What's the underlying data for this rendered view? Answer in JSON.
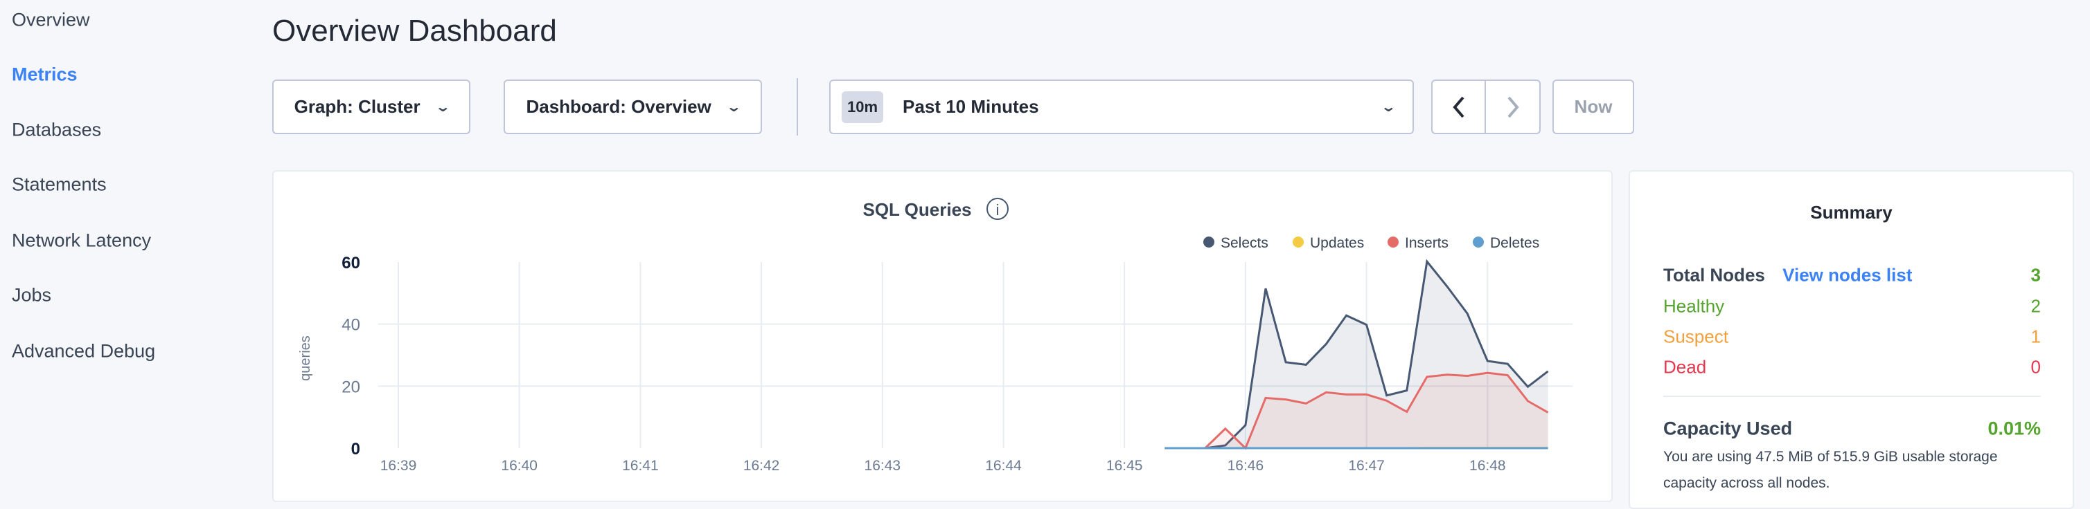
{
  "sidebar": {
    "items": [
      {
        "label": "Overview",
        "active": false
      },
      {
        "label": "Metrics",
        "active": true
      },
      {
        "label": "Databases",
        "active": false
      },
      {
        "label": "Statements",
        "active": false
      },
      {
        "label": "Network Latency",
        "active": false
      },
      {
        "label": "Jobs",
        "active": false
      },
      {
        "label": "Advanced Debug",
        "active": false
      }
    ]
  },
  "header": {
    "title": "Overview Dashboard"
  },
  "toolbar": {
    "graph_select": "Graph: Cluster",
    "dashboard_select": "Dashboard: Overview",
    "time_badge": "10m",
    "time_range": "Past 10 Minutes",
    "now_label": "Now"
  },
  "summary": {
    "title": "Summary",
    "total_nodes_label": "Total Nodes",
    "view_nodes_link": "View nodes list",
    "total_nodes": "3",
    "healthy_label": "Healthy",
    "healthy": "2",
    "suspect_label": "Suspect",
    "suspect": "1",
    "dead_label": "Dead",
    "dead": "0",
    "capacity_label": "Capacity Used",
    "capacity_value": "0.01%",
    "capacity_desc": "You are using 47.5 MiB of 515.9 GiB usable storage capacity across all nodes.",
    "colors": {
      "healthy": "#54a42d",
      "suspect": "#f0a03c",
      "dead": "#e5384e",
      "link": "#3b82f6"
    }
  },
  "chart_data": {
    "type": "area",
    "title": "SQL Queries",
    "ylabel": "queries",
    "xlabel": "",
    "ylim": [
      0,
      60
    ],
    "yticks": [
      "0",
      "20",
      "40",
      "60"
    ],
    "xticks": [
      "16:39",
      "16:40",
      "16:41",
      "16:42",
      "16:43",
      "16:44",
      "16:45",
      "16:46",
      "16:47",
      "16:48"
    ],
    "grid": true,
    "legend": "top-right",
    "x": [
      "16:45:20",
      "16:45:30",
      "16:45:40",
      "16:45:50",
      "16:46:00",
      "16:46:10",
      "16:46:20",
      "16:46:30",
      "16:46:40",
      "16:46:50",
      "16:47:00",
      "16:47:10",
      "16:47:20",
      "16:47:30",
      "16:47:40",
      "16:47:50",
      "16:48:00",
      "16:48:10",
      "16:48:20",
      "16:48:30"
    ],
    "series": [
      {
        "name": "Selects",
        "color": "#475872",
        "values": [
          0,
          0,
          0,
          0.9,
          7.4,
          51.5,
          27.7,
          26.9,
          33.6,
          42.8,
          39.8,
          17.0,
          18.6,
          60.2,
          52.1,
          43.4,
          28.1,
          27.2,
          19.8,
          24.8
        ]
      },
      {
        "name": "Updates",
        "color": "#f4cb44",
        "values": [
          0,
          0,
          0,
          0,
          0,
          0,
          0,
          0,
          0,
          0,
          0,
          0,
          0,
          0.1,
          0.1,
          0.1,
          0.1,
          0.1,
          0.1,
          0.1
        ]
      },
      {
        "name": "Inserts",
        "color": "#e56b69",
        "values": [
          0,
          0,
          0,
          6.3,
          0,
          16.2,
          15.7,
          14.4,
          18.0,
          17.3,
          17.3,
          15.3,
          11.7,
          23.0,
          23.7,
          23.3,
          24.3,
          23.5,
          15.2,
          11.5
        ]
      },
      {
        "name": "Deletes",
        "color": "#5e9fd0",
        "values": [
          0,
          0,
          0,
          0,
          0,
          0,
          0,
          0,
          0,
          0,
          0,
          0,
          0,
          0,
          0,
          0,
          0,
          0,
          0,
          0
        ]
      }
    ]
  }
}
